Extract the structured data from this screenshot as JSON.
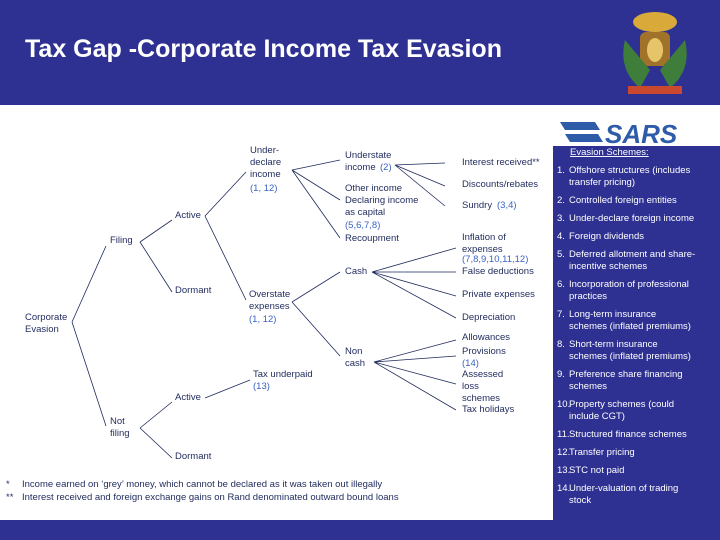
{
  "header": {
    "title": "Tax Gap -Corporate Income Tax Evasion",
    "logo": "SARS"
  },
  "tree": {
    "nodes": [
      {
        "lines": [
          "Corporate",
          "Evasion"
        ]
      },
      {
        "lines": [
          "Filing"
        ]
      },
      {
        "lines": [
          "Not",
          "filing"
        ]
      },
      {
        "lines": [
          "Active"
        ]
      },
      {
        "lines": [
          "Dormant"
        ]
      },
      {
        "lines": [
          "Active"
        ]
      },
      {
        "lines": [
          "Dormant"
        ]
      },
      {
        "lines": [
          "Under-",
          "declare",
          "income"
        ],
        "ref": "(1, 12)"
      },
      {
        "lines": [
          "Overstate",
          "expenses"
        ],
        "ref": "(1, 12)"
      },
      {
        "lines": [
          "Tax underpaid"
        ],
        "ref": "(13)"
      },
      {
        "lines": [
          "Understate",
          "income"
        ],
        "ref": "(2)"
      },
      {
        "lines": [
          "Other income",
          "Declaring income",
          "as capital"
        ],
        "ref": "(5,6,7,8)"
      },
      {
        "lines": [
          "Recoupment"
        ]
      },
      {
        "lines": [
          "Cash"
        ]
      },
      {
        "lines": [
          "Non",
          "cash"
        ]
      },
      {
        "lines": [
          "Interest received**"
        ]
      },
      {
        "lines": [
          "Discounts/rebates"
        ]
      },
      {
        "lines": [
          "Sundry"
        ],
        "ref": "(3,4)"
      },
      {
        "lines": [
          "Inflation of",
          "expenses"
        ],
        "ref": "(7,8,9,10,11,12)"
      },
      {
        "lines": [
          "False deductions"
        ]
      },
      {
        "lines": [
          "Private expenses"
        ]
      },
      {
        "lines": [
          "Depreciation"
        ]
      },
      {
        "lines": [
          "Allowances"
        ]
      },
      {
        "lines": [
          "Provisions"
        ],
        "ref": "(14)"
      },
      {
        "lines": [
          "Assessed",
          "loss",
          "schemes"
        ]
      },
      {
        "lines": [
          "Tax holidays"
        ]
      }
    ]
  },
  "schemes": {
    "heading": "Evasion Schemes:",
    "items": [
      {
        "number": "1.",
        "lines": [
          "Offshore structures (includes",
          "transfer pricing)"
        ]
      },
      {
        "number": "2.",
        "lines": [
          "Controlled foreign entities"
        ]
      },
      {
        "number": "3.",
        "lines": [
          "Under-declare foreign income"
        ]
      },
      {
        "number": "4.",
        "lines": [
          "Foreign dividends"
        ]
      },
      {
        "number": "5.",
        "lines": [
          "Deferred allotment and share-",
          "incentive schemes"
        ]
      },
      {
        "number": "6.",
        "lines": [
          "Incorporation of professional",
          "practices"
        ]
      },
      {
        "number": "7.",
        "lines": [
          "Long-term insurance",
          "schemes (inflated premiums)"
        ]
      },
      {
        "number": "8.",
        "lines": [
          "Short-term insurance",
          "schemes (inflated premiums)"
        ]
      },
      {
        "number": "9.",
        "lines": [
          "Preference share financing",
          "schemes"
        ]
      },
      {
        "number": "10.",
        "lines": [
          "Property schemes (could",
          "include CGT)"
        ]
      },
      {
        "number": "11.",
        "lines": [
          "Structured finance schemes"
        ]
      },
      {
        "number": "12.",
        "lines": [
          "Transfer pricing"
        ]
      },
      {
        "number": "13.",
        "lines": [
          "STC not paid"
        ]
      },
      {
        "number": "14.",
        "lines": [
          "Under-valuation of trading",
          "stock"
        ]
      }
    ]
  },
  "footnotes": [
    {
      "mark": "*",
      "text": "Income earned on ‘grey’ money, which cannot be declared as it was taken out illegally"
    },
    {
      "mark": "**",
      "text": "Interest received and foreign exchange gains on Rand denominated outward bound loans"
    }
  ]
}
